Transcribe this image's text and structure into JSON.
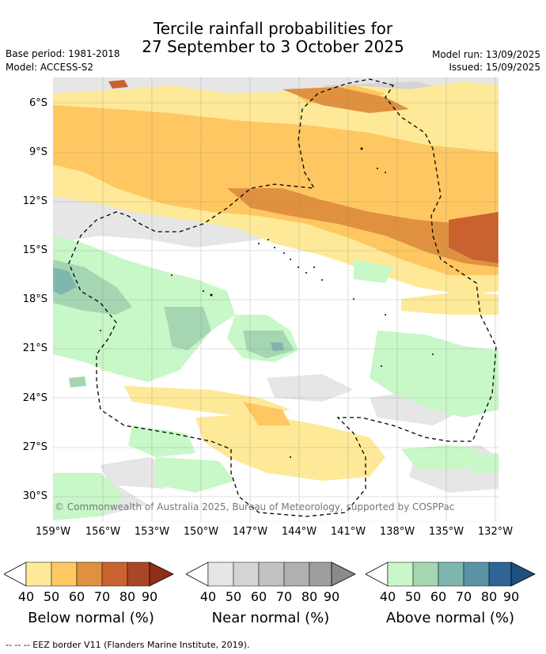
{
  "title_line1": "Tercile rainfall probabilities for",
  "title_line2": "27 September to 3 October 2025",
  "base_period": "Base period: 1981-2018",
  "model": "Model: ACCESS-S2",
  "model_run": "Model run: 13/09/2025",
  "issued": "Issued: 15/09/2025",
  "copyright": "© Commonwealth of Australia 2025, Bureau of Meteorology, supported by COSPPac",
  "lat_labels": [
    "6°S",
    "9°S",
    "12°S",
    "15°S",
    "18°S",
    "21°S",
    "24°S",
    "27°S",
    "30°S"
  ],
  "lon_labels": [
    "159°W",
    "156°W",
    "153°W",
    "150°W",
    "147°W",
    "144°W",
    "141°W",
    "138°W",
    "135°W",
    "132°W"
  ],
  "colorbars": [
    {
      "label": "Below normal (%)",
      "ticks": [
        "40",
        "50",
        "60",
        "70",
        "80",
        "90"
      ],
      "colors": [
        "#fee998",
        "#fec761",
        "#e0913f",
        "#c9622f",
        "#a94626",
        "#8f2f1a"
      ]
    },
    {
      "label": "Near normal (%)",
      "ticks": [
        "40",
        "50",
        "60",
        "70",
        "80",
        "90"
      ],
      "colors": [
        "#e6e6e6",
        "#d4d4d4",
        "#c2c2c2",
        "#b0b0b0",
        "#9e9e9e",
        "#8a8a8a"
      ]
    },
    {
      "label": "Above normal (%)",
      "ticks": [
        "40",
        "50",
        "60",
        "70",
        "80",
        "90"
      ],
      "colors": [
        "#c8f7c8",
        "#a4d6b2",
        "#7fb6ad",
        "#5b93a6",
        "#2e6496",
        "#1f4f7d"
      ]
    }
  ],
  "footer": "--  --  -- EEZ border V11 (Flanders Marine Institute, 2019)."
}
